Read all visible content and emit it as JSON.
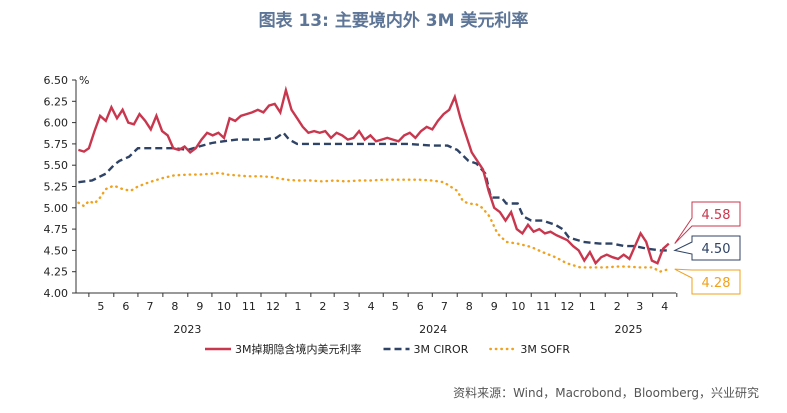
{
  "title": "图表 13: 主要境内外 3M 美元利率",
  "source": "资料来源：Wind，Macrobond，Bloomberg，兴业研究",
  "colors": {
    "cny_usd": "#c8374e",
    "ciror": "#2f4366",
    "sofr": "#f0a21e",
    "axis": "#333333"
  },
  "chart_data": {
    "type": "line",
    "title": "图表 13: 主要境内外 3M 美元利率",
    "ylabel": "%",
    "ylim": [
      4.0,
      6.5
    ],
    "yticks": [
      "4.00",
      "4.25",
      "4.50",
      "4.75",
      "5.00",
      "5.25",
      "5.50",
      "5.75",
      "6.00",
      "6.25",
      "6.50"
    ],
    "x_range": [
      "2023-04-15",
      "2025-04-30"
    ],
    "month_ticks": [
      "5",
      "6",
      "7",
      "8",
      "9",
      "10",
      "11",
      "12",
      "1",
      "2",
      "3",
      "4",
      "5",
      "6",
      "7",
      "8",
      "9",
      "10",
      "11",
      "12",
      "1",
      "2",
      "3",
      "4"
    ],
    "year_labels": [
      "2023",
      "2024",
      "2025"
    ],
    "grid": false,
    "legend_position": "bottom",
    "series": [
      {
        "name": "3M掉期隐含境内美元利率",
        "style": "solid",
        "points": [
          [
            "2023-04-18",
            5.68
          ],
          [
            "2023-04-25",
            5.66
          ],
          [
            "2023-05-01",
            5.7
          ],
          [
            "2023-05-08",
            5.9
          ],
          [
            "2023-05-15",
            6.08
          ],
          [
            "2023-05-22",
            6.02
          ],
          [
            "2023-05-29",
            6.18
          ],
          [
            "2023-06-05",
            6.05
          ],
          [
            "2023-06-12",
            6.15
          ],
          [
            "2023-06-19",
            6.0
          ],
          [
            "2023-06-26",
            5.98
          ],
          [
            "2023-07-03",
            6.1
          ],
          [
            "2023-07-10",
            6.02
          ],
          [
            "2023-07-17",
            5.92
          ],
          [
            "2023-07-24",
            6.08
          ],
          [
            "2023-07-31",
            5.9
          ],
          [
            "2023-08-07",
            5.85
          ],
          [
            "2023-08-14",
            5.7
          ],
          [
            "2023-08-21",
            5.68
          ],
          [
            "2023-08-28",
            5.72
          ],
          [
            "2023-09-04",
            5.65
          ],
          [
            "2023-09-11",
            5.7
          ],
          [
            "2023-09-18",
            5.8
          ],
          [
            "2023-09-25",
            5.88
          ],
          [
            "2023-10-02",
            5.85
          ],
          [
            "2023-10-09",
            5.88
          ],
          [
            "2023-10-16",
            5.82
          ],
          [
            "2023-10-23",
            6.05
          ],
          [
            "2023-10-30",
            6.02
          ],
          [
            "2023-11-06",
            6.08
          ],
          [
            "2023-11-13",
            6.1
          ],
          [
            "2023-11-20",
            6.12
          ],
          [
            "2023-11-27",
            6.15
          ],
          [
            "2023-12-04",
            6.12
          ],
          [
            "2023-12-11",
            6.2
          ],
          [
            "2023-12-18",
            6.22
          ],
          [
            "2023-12-25",
            6.12
          ],
          [
            "2024-01-01",
            6.38
          ],
          [
            "2024-01-08",
            6.15
          ],
          [
            "2024-01-15",
            6.05
          ],
          [
            "2024-01-22",
            5.95
          ],
          [
            "2024-01-29",
            5.88
          ],
          [
            "2024-02-05",
            5.9
          ],
          [
            "2024-02-12",
            5.88
          ],
          [
            "2024-02-19",
            5.9
          ],
          [
            "2024-02-26",
            5.82
          ],
          [
            "2024-03-04",
            5.88
          ],
          [
            "2024-03-11",
            5.85
          ],
          [
            "2024-03-18",
            5.8
          ],
          [
            "2024-03-25",
            5.82
          ],
          [
            "2024-04-01",
            5.9
          ],
          [
            "2024-04-08",
            5.8
          ],
          [
            "2024-04-15",
            5.85
          ],
          [
            "2024-04-22",
            5.78
          ],
          [
            "2024-04-29",
            5.8
          ],
          [
            "2024-05-06",
            5.82
          ],
          [
            "2024-05-13",
            5.8
          ],
          [
            "2024-05-20",
            5.78
          ],
          [
            "2024-05-27",
            5.85
          ],
          [
            "2024-06-03",
            5.88
          ],
          [
            "2024-06-10",
            5.82
          ],
          [
            "2024-06-17",
            5.9
          ],
          [
            "2024-06-24",
            5.95
          ],
          [
            "2024-07-01",
            5.92
          ],
          [
            "2024-07-08",
            6.02
          ],
          [
            "2024-07-15",
            6.1
          ],
          [
            "2024-07-22",
            6.15
          ],
          [
            "2024-07-29",
            6.3
          ],
          [
            "2024-08-05",
            6.05
          ],
          [
            "2024-08-12",
            5.85
          ],
          [
            "2024-08-19",
            5.65
          ],
          [
            "2024-08-26",
            5.55
          ],
          [
            "2024-09-02",
            5.45
          ],
          [
            "2024-09-09",
            5.2
          ],
          [
            "2024-09-16",
            5.0
          ],
          [
            "2024-09-23",
            4.95
          ],
          [
            "2024-09-30",
            4.85
          ],
          [
            "2024-10-07",
            4.95
          ],
          [
            "2024-10-14",
            4.75
          ],
          [
            "2024-10-21",
            4.7
          ],
          [
            "2024-10-28",
            4.8
          ],
          [
            "2024-11-04",
            4.72
          ],
          [
            "2024-11-11",
            4.75
          ],
          [
            "2024-11-18",
            4.7
          ],
          [
            "2024-11-25",
            4.72
          ],
          [
            "2024-12-02",
            4.68
          ],
          [
            "2024-12-09",
            4.65
          ],
          [
            "2024-12-16",
            4.62
          ],
          [
            "2024-12-23",
            4.55
          ],
          [
            "2024-12-30",
            4.5
          ],
          [
            "2025-01-06",
            4.38
          ],
          [
            "2025-01-13",
            4.48
          ],
          [
            "2025-01-20",
            4.35
          ],
          [
            "2025-01-27",
            4.42
          ],
          [
            "2025-02-03",
            4.45
          ],
          [
            "2025-02-10",
            4.42
          ],
          [
            "2025-02-17",
            4.4
          ],
          [
            "2025-02-24",
            4.45
          ],
          [
            "2025-03-03",
            4.4
          ],
          [
            "2025-03-10",
            4.55
          ],
          [
            "2025-03-17",
            4.7
          ],
          [
            "2025-03-24",
            4.6
          ],
          [
            "2025-03-31",
            4.38
          ],
          [
            "2025-04-07",
            4.35
          ],
          [
            "2025-04-14",
            4.52
          ],
          [
            "2025-04-21",
            4.58
          ]
        ]
      },
      {
        "name": "3M CIROR",
        "style": "dashed",
        "points": [
          [
            "2023-04-18",
            5.3
          ],
          [
            "2023-05-05",
            5.32
          ],
          [
            "2023-05-22",
            5.4
          ],
          [
            "2023-06-01",
            5.5
          ],
          [
            "2023-06-08",
            5.55
          ],
          [
            "2023-06-20",
            5.6
          ],
          [
            "2023-07-01",
            5.7
          ],
          [
            "2023-07-15",
            5.7
          ],
          [
            "2023-08-01",
            5.7
          ],
          [
            "2023-08-15",
            5.7
          ],
          [
            "2023-09-01",
            5.68
          ],
          [
            "2023-09-15",
            5.72
          ],
          [
            "2023-10-01",
            5.76
          ],
          [
            "2023-10-15",
            5.78
          ],
          [
            "2023-11-01",
            5.8
          ],
          [
            "2023-12-01",
            5.8
          ],
          [
            "2023-12-20",
            5.82
          ],
          [
            "2023-12-29",
            5.88
          ],
          [
            "2024-01-05",
            5.8
          ],
          [
            "2024-01-15",
            5.75
          ],
          [
            "2024-02-01",
            5.75
          ],
          [
            "2024-03-01",
            5.75
          ],
          [
            "2024-04-01",
            5.75
          ],
          [
            "2024-05-01",
            5.75
          ],
          [
            "2024-06-01",
            5.75
          ],
          [
            "2024-07-01",
            5.73
          ],
          [
            "2024-07-20",
            5.73
          ],
          [
            "2024-08-01",
            5.68
          ],
          [
            "2024-08-15",
            5.55
          ],
          [
            "2024-08-25",
            5.52
          ],
          [
            "2024-09-05",
            5.4
          ],
          [
            "2024-09-12",
            5.12
          ],
          [
            "2024-09-25",
            5.12
          ],
          [
            "2024-10-01",
            5.05
          ],
          [
            "2024-10-15",
            5.05
          ],
          [
            "2024-10-22",
            4.9
          ],
          [
            "2024-11-01",
            4.85
          ],
          [
            "2024-11-15",
            4.85
          ],
          [
            "2024-12-01",
            4.8
          ],
          [
            "2024-12-10",
            4.75
          ],
          [
            "2024-12-18",
            4.65
          ],
          [
            "2025-01-05",
            4.6
          ],
          [
            "2025-01-25",
            4.58
          ],
          [
            "2025-02-10",
            4.58
          ],
          [
            "2025-02-25",
            4.55
          ],
          [
            "2025-03-10",
            4.55
          ],
          [
            "2025-03-25",
            4.52
          ],
          [
            "2025-04-10",
            4.5
          ],
          [
            "2025-04-21",
            4.5
          ]
        ]
      },
      {
        "name": "3M SOFR",
        "style": "dotted",
        "points": [
          [
            "2023-04-18",
            5.06
          ],
          [
            "2023-04-25",
            5.02
          ],
          [
            "2023-05-01",
            5.08
          ],
          [
            "2023-05-08",
            5.05
          ],
          [
            "2023-05-15",
            5.12
          ],
          [
            "2023-05-22",
            5.22
          ],
          [
            "2023-06-01",
            5.26
          ],
          [
            "2023-06-12",
            5.22
          ],
          [
            "2023-06-22",
            5.2
          ],
          [
            "2023-07-01",
            5.25
          ],
          [
            "2023-07-15",
            5.3
          ],
          [
            "2023-08-01",
            5.35
          ],
          [
            "2023-08-15",
            5.38
          ],
          [
            "2023-09-01",
            5.39
          ],
          [
            "2023-09-15",
            5.39
          ],
          [
            "2023-10-01",
            5.4
          ],
          [
            "2023-10-10",
            5.41
          ],
          [
            "2023-10-20",
            5.39
          ],
          [
            "2023-11-01",
            5.38
          ],
          [
            "2023-11-15",
            5.37
          ],
          [
            "2023-12-01",
            5.37
          ],
          [
            "2023-12-15",
            5.36
          ],
          [
            "2024-01-01",
            5.33
          ],
          [
            "2024-01-15",
            5.32
          ],
          [
            "2024-02-01",
            5.32
          ],
          [
            "2024-02-15",
            5.31
          ],
          [
            "2024-03-01",
            5.32
          ],
          [
            "2024-03-15",
            5.31
          ],
          [
            "2024-04-01",
            5.32
          ],
          [
            "2024-04-15",
            5.32
          ],
          [
            "2024-05-01",
            5.33
          ],
          [
            "2024-05-15",
            5.33
          ],
          [
            "2024-06-01",
            5.33
          ],
          [
            "2024-06-15",
            5.33
          ],
          [
            "2024-07-01",
            5.32
          ],
          [
            "2024-07-15",
            5.3
          ],
          [
            "2024-08-01",
            5.2
          ],
          [
            "2024-08-08",
            5.08
          ],
          [
            "2024-08-15",
            5.05
          ],
          [
            "2024-08-25",
            5.04
          ],
          [
            "2024-09-01",
            5.0
          ],
          [
            "2024-09-10",
            4.9
          ],
          [
            "2024-09-20",
            4.7
          ],
          [
            "2024-10-01",
            4.6
          ],
          [
            "2024-10-15",
            4.58
          ],
          [
            "2024-11-01",
            4.54
          ],
          [
            "2024-11-15",
            4.48
          ],
          [
            "2024-12-01",
            4.42
          ],
          [
            "2024-12-15",
            4.35
          ],
          [
            "2025-01-01",
            4.3
          ],
          [
            "2025-01-15",
            4.3
          ],
          [
            "2025-02-01",
            4.3
          ],
          [
            "2025-02-15",
            4.31
          ],
          [
            "2025-03-01",
            4.31
          ],
          [
            "2025-03-15",
            4.3
          ],
          [
            "2025-04-01",
            4.3
          ],
          [
            "2025-04-10",
            4.25
          ],
          [
            "2025-04-21",
            4.28
          ]
        ]
      }
    ],
    "end_labels": [
      {
        "text": "4.58",
        "series": 0
      },
      {
        "text": "4.50",
        "series": 1
      },
      {
        "text": "4.28",
        "series": 2
      }
    ]
  }
}
